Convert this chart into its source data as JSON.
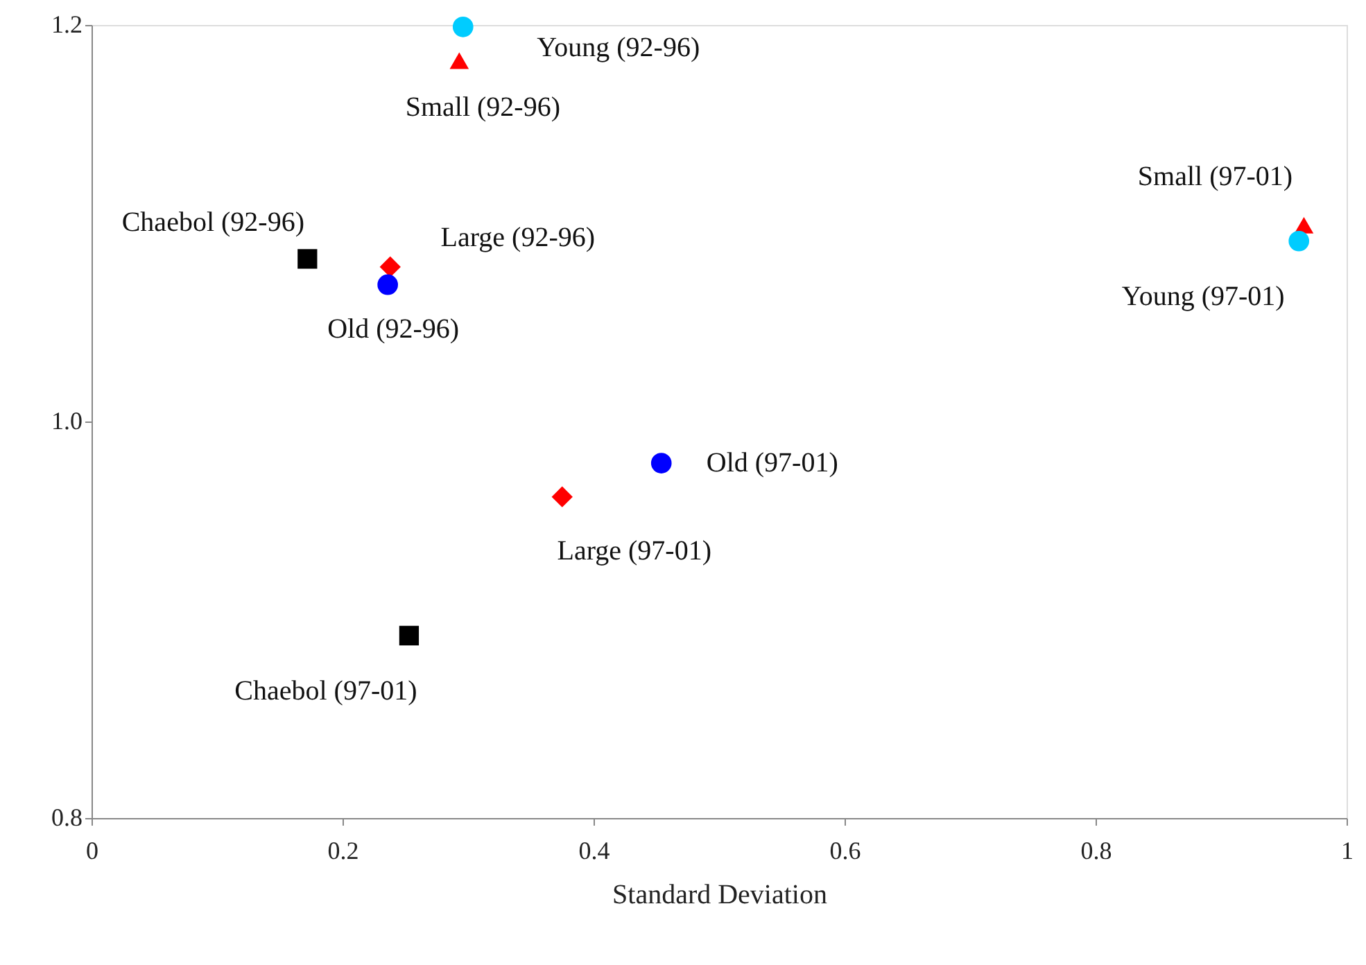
{
  "chart_data": {
    "type": "scatter",
    "xlabel": "Standard Deviation",
    "xlim": [
      0,
      1
    ],
    "xticks": [
      0,
      0.2,
      0.4,
      0.6,
      0.8,
      1
    ],
    "ylim": [
      0.8,
      1.2
    ],
    "yticks": [
      0.8,
      {
        "value": 1.0,
        "label": "1.0"
      },
      1.2
    ],
    "grid": false,
    "series": [
      {
        "color": "#000000",
        "marker": "square",
        "x": [
          0.172,
          0.253
        ],
        "values": [
          1.082,
          0.892
        ]
      },
      {
        "color": "#ff0000",
        "marker": "diamond",
        "x": [
          0.238,
          0.375
        ],
        "values": [
          1.078,
          0.962
        ]
      },
      {
        "color": "#ff0000",
        "marker": "triangle",
        "x": [
          0.293,
          0.966
        ],
        "values": [
          1.182,
          1.099
        ]
      },
      {
        "color": "#0000ff",
        "marker": "circle",
        "x": [
          0.236,
          0.454
        ],
        "values": [
          1.069,
          0.979
        ]
      },
      {
        "color": "#00ccff",
        "marker": "circle",
        "x": [
          0.296,
          0.962
        ],
        "values": [
          1.199,
          1.091
        ]
      }
    ],
    "annotations": [
      {
        "text": "Young (92-96)",
        "x": 0.296,
        "y": 1.199
      },
      {
        "text": "Small (92-96)",
        "x": 0.293,
        "y": 1.182
      },
      {
        "text": "Chaebol (92-96)",
        "x": 0.172,
        "y": 1.082
      },
      {
        "text": "Large (92-96)",
        "x": 0.238,
        "y": 1.078
      },
      {
        "text": "Old (92-96)",
        "x": 0.236,
        "y": 1.069
      },
      {
        "text": "Small (97-01)",
        "x": 0.966,
        "y": 1.099
      },
      {
        "text": "Young (97-01)",
        "x": 0.962,
        "y": 1.091
      },
      {
        "text": "Old (97-01)",
        "x": 0.454,
        "y": 0.979
      },
      {
        "text": "Large (97-01)",
        "x": 0.375,
        "y": 0.962
      },
      {
        "text": "Chaebol (97-01)",
        "x": 0.253,
        "y": 0.892
      }
    ]
  }
}
